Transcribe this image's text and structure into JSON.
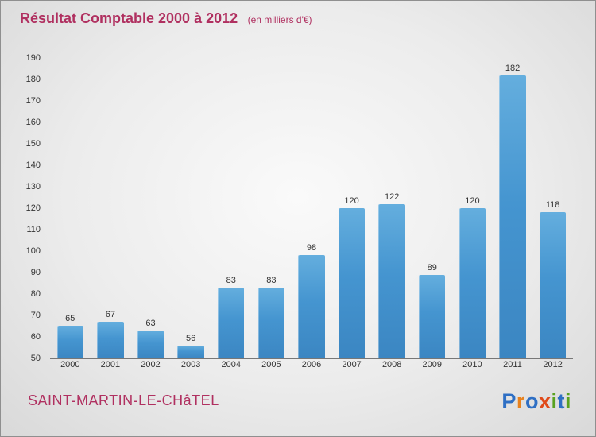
{
  "title": {
    "main": "Résultat Comptable 2000 à 2012",
    "subtitle": "(en milliers d'€)"
  },
  "footer": {
    "location": "SAINT-MARTIN-LE-CHâTEL"
  },
  "logo": {
    "text": "Proxiti",
    "letters": [
      {
        "char": "P",
        "color": "#2e6fc4"
      },
      {
        "char": "r",
        "color": "#e8821e"
      },
      {
        "char": "o",
        "color": "#2e6fc4"
      },
      {
        "char": "x",
        "color": "#e04a1a"
      },
      {
        "char": "i",
        "color": "#59a21f"
      },
      {
        "char": "t",
        "color": "#2e6fc4"
      },
      {
        "char": "i",
        "color": "#59a21f"
      }
    ]
  },
  "chart_data": {
    "type": "bar",
    "title": "Résultat Comptable 2000 à 2012",
    "subtitle": "(en milliers d'€)",
    "categories": [
      "2000",
      "2001",
      "2002",
      "2003",
      "2004",
      "2005",
      "2006",
      "2007",
      "2008",
      "2009",
      "2010",
      "2011",
      "2012"
    ],
    "values": [
      65,
      67,
      63,
      56,
      83,
      83,
      98,
      120,
      122,
      89,
      120,
      182,
      118
    ],
    "xlabel": "",
    "ylabel": "",
    "ylim": [
      50,
      190
    ],
    "ytick_step": 10,
    "grid": false,
    "legend": "none",
    "bar_color": "#4595d0",
    "label_color": "#333333",
    "accent_color": "#b03060"
  }
}
